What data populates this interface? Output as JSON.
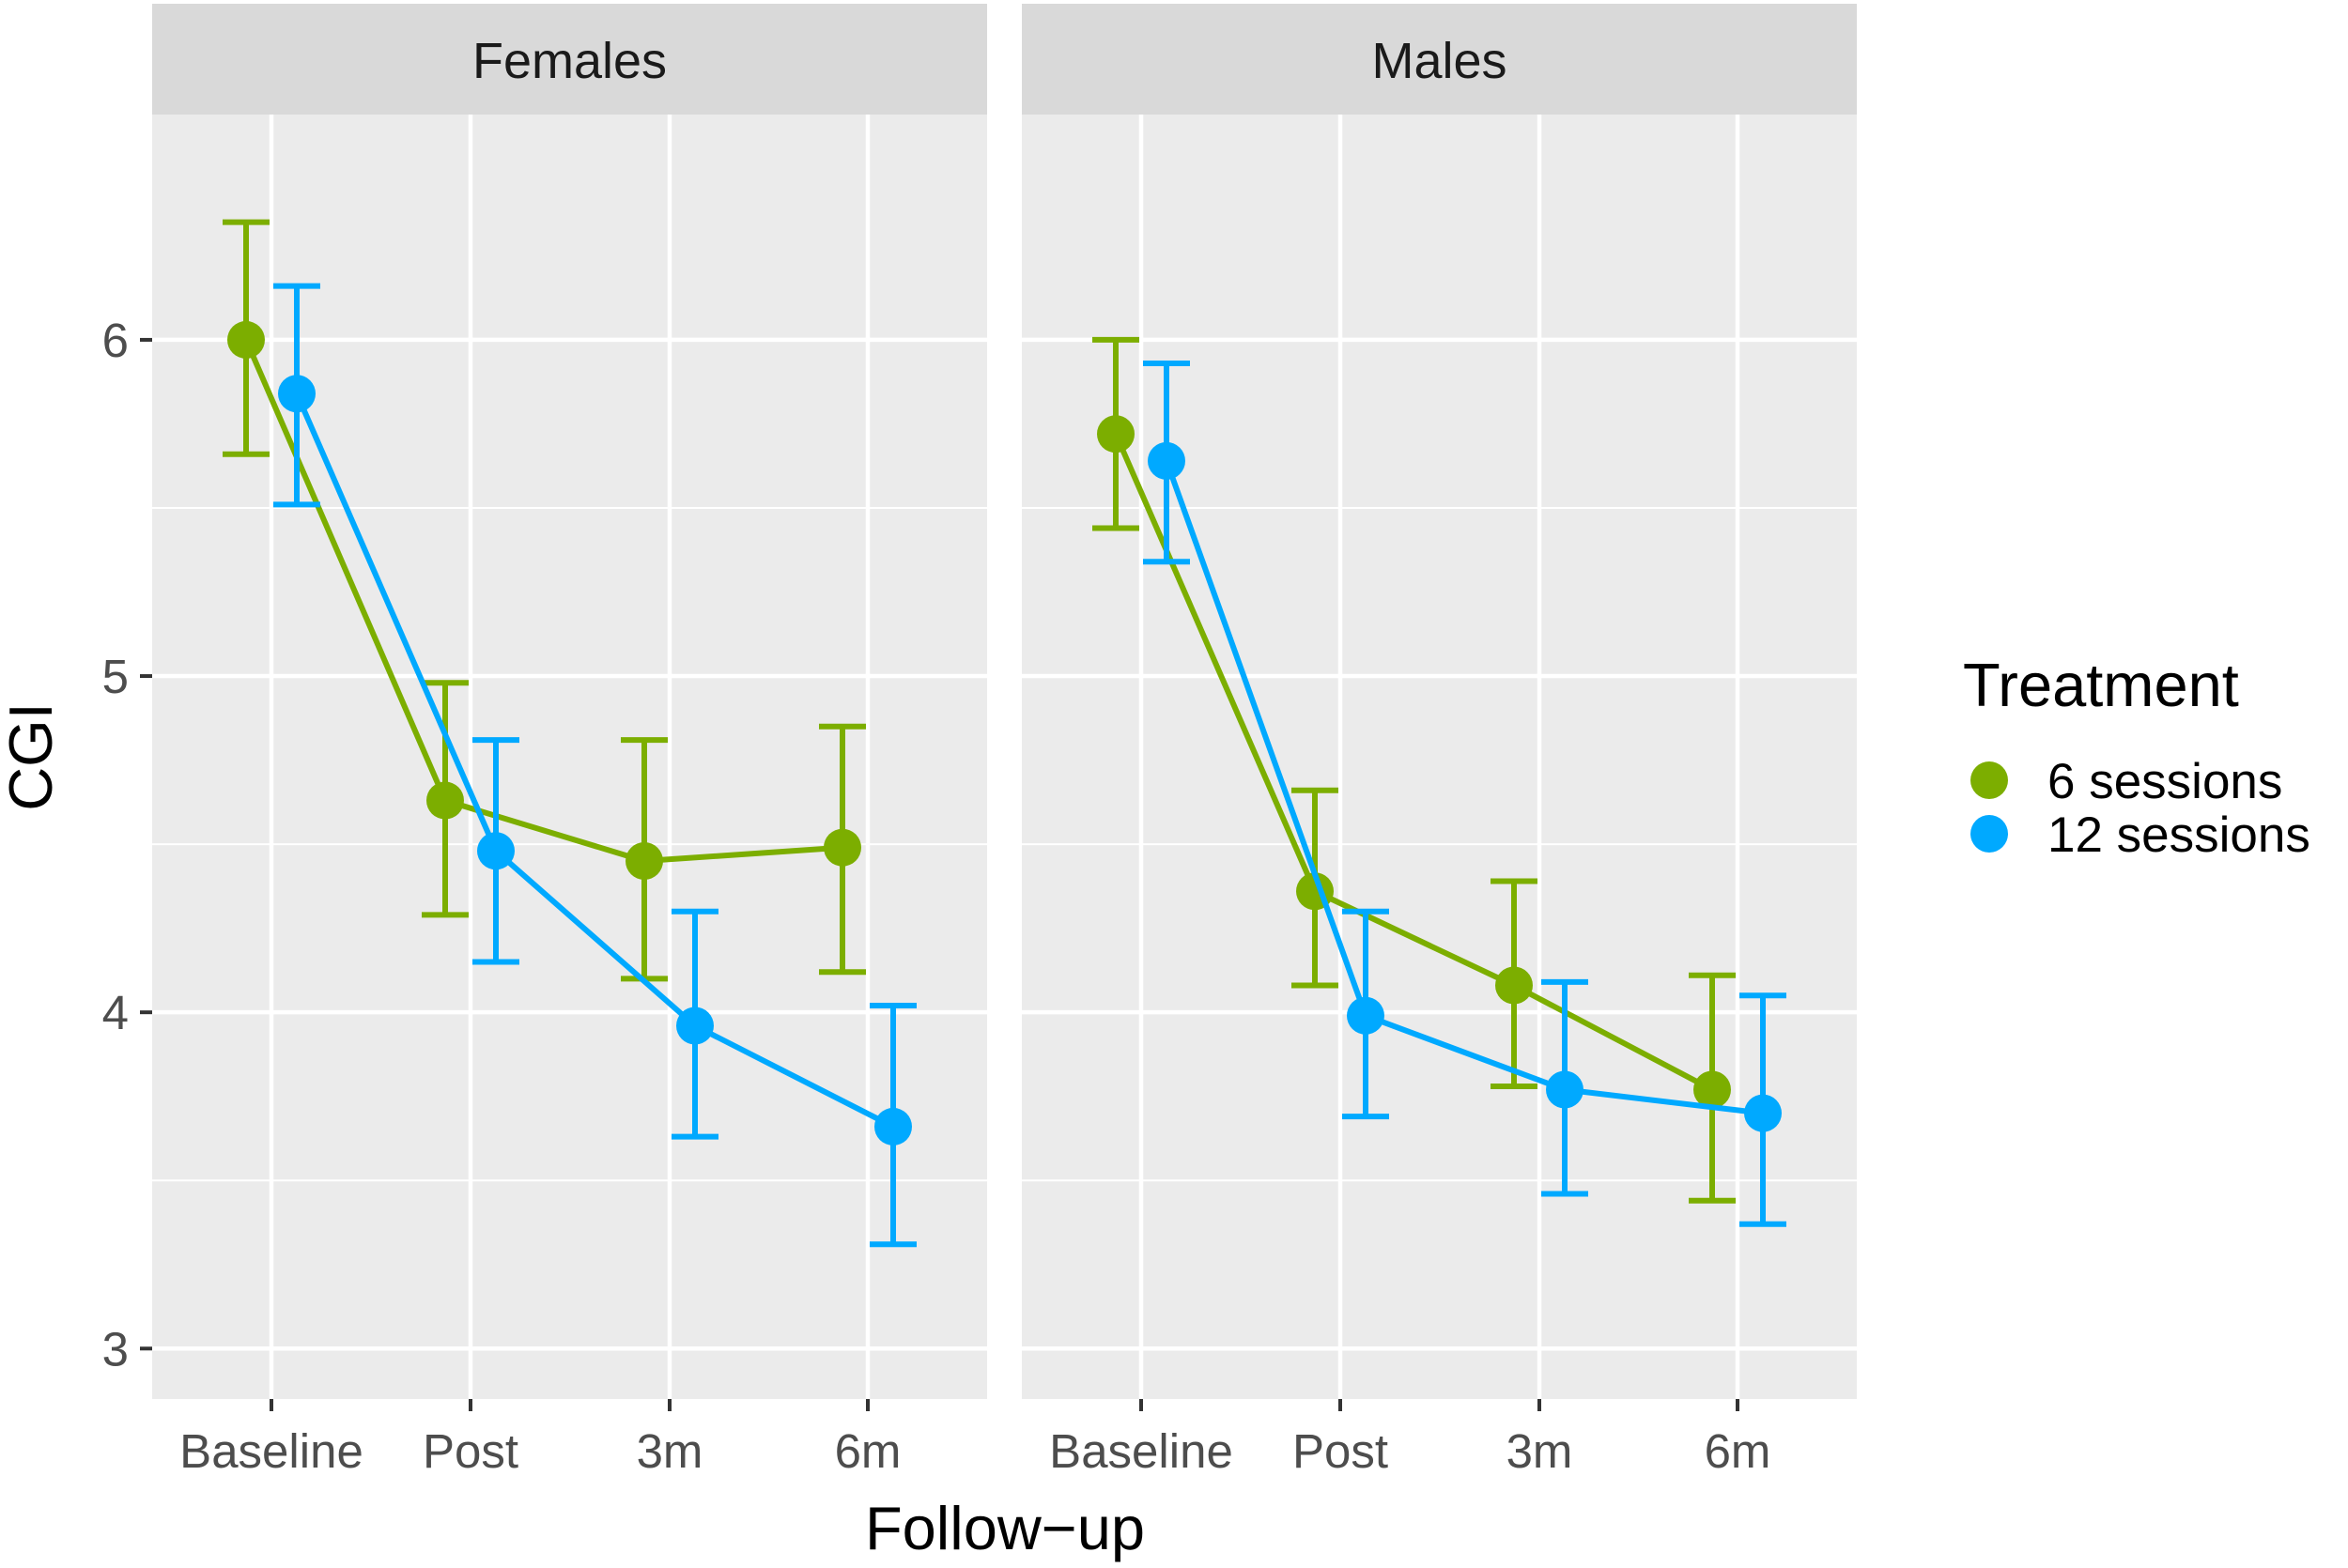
{
  "chart_data": {
    "type": "line",
    "xlabel": "Follow−up",
    "ylabel": "CGI",
    "categories": [
      "Baseline",
      "Post",
      "3m",
      "6m"
    ],
    "ylim": [
      2.85,
      6.67
    ],
    "yticks": [
      3,
      4,
      5,
      6
    ],
    "ytick_labels": [
      "3",
      "4",
      "5",
      "6"
    ],
    "grid": true,
    "legend": {
      "title": "Treatment",
      "placement": "right",
      "entries": [
        {
          "label": "6 sessions",
          "color": "#7cae00"
        },
        {
          "label": "12 sessions",
          "color": "#00a9ff"
        }
      ]
    },
    "panels": [
      {
        "strip": "Females",
        "series": [
          {
            "name": "6 sessions",
            "color": "#7cae00",
            "values": [
              6.0,
              4.63,
              4.45,
              4.49
            ],
            "lower": [
              5.66,
              4.29,
              4.1,
              4.12
            ],
            "upper": [
              6.35,
              4.98,
              4.81,
              4.85
            ]
          },
          {
            "name": "12 sessions",
            "color": "#00a9ff",
            "values": [
              5.84,
              4.48,
              3.96,
              3.66
            ],
            "lower": [
              5.51,
              4.15,
              3.63,
              3.31
            ],
            "upper": [
              6.16,
              4.81,
              4.3,
              4.02
            ]
          }
        ]
      },
      {
        "strip": "Males",
        "series": [
          {
            "name": "6 sessions",
            "color": "#7cae00",
            "values": [
              5.72,
              4.36,
              4.08,
              3.77
            ],
            "lower": [
              5.44,
              4.08,
              3.78,
              3.44
            ],
            "upper": [
              6.0,
              4.66,
              4.39,
              4.11
            ]
          },
          {
            "name": "12 sessions",
            "color": "#00a9ff",
            "values": [
              5.64,
              3.99,
              3.77,
              3.7
            ],
            "lower": [
              5.34,
              3.69,
              3.46,
              3.37
            ],
            "upper": [
              5.93,
              4.3,
              4.09,
              4.05
            ]
          }
        ]
      }
    ]
  }
}
